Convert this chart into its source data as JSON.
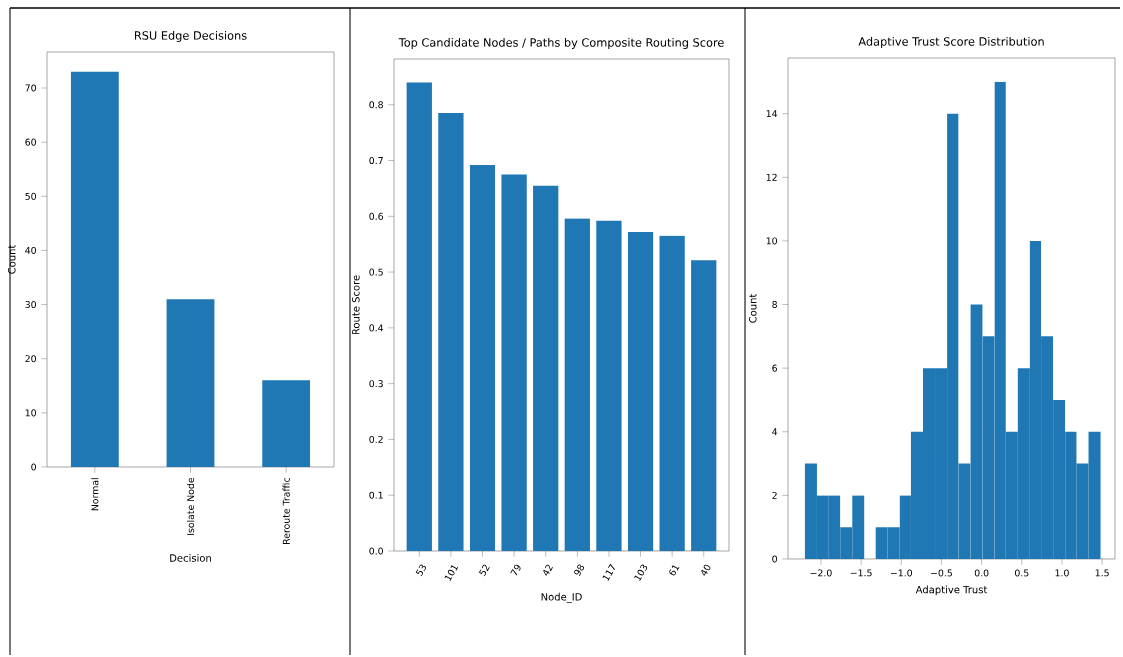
{
  "chart_data": [
    {
      "type": "bar",
      "title": "RSU Edge Decisions",
      "xlabel": "Decision",
      "ylabel": "Count",
      "categories": [
        "Normal",
        "Isolate Node",
        "Reroute Traffic"
      ],
      "values": [
        73,
        31,
        16
      ],
      "color": "#1f77b4",
      "ylim": [
        0,
        76.65
      ],
      "yticks": [
        0,
        10,
        20,
        30,
        40,
        50,
        60,
        70
      ]
    },
    {
      "type": "bar",
      "title": "Top Candidate Nodes / Paths by Composite Routing Score",
      "xlabel": "Node_ID",
      "ylabel": "Route Score",
      "categories": [
        "53",
        "101",
        "52",
        "79",
        "42",
        "98",
        "117",
        "103",
        "61",
        "40"
      ],
      "values": [
        0.84,
        0.785,
        0.692,
        0.675,
        0.655,
        0.596,
        0.592,
        0.572,
        0.565,
        0.521
      ],
      "color": "#1f77b4",
      "ylim": [
        0,
        0.882
      ],
      "yticks": [
        {
          "value": 0,
          "label": "0.0"
        },
        {
          "value": 0.1,
          "label": "0.1"
        },
        {
          "value": 0.2,
          "label": "0.2"
        },
        {
          "value": 0.3,
          "label": "0.3"
        },
        {
          "value": 0.4,
          "label": "0.4"
        },
        {
          "value": 0.5,
          "label": "0.5"
        },
        {
          "value": 0.6,
          "label": "0.6"
        },
        {
          "value": 0.7,
          "label": "0.7"
        },
        {
          "value": 0.8,
          "label": "0.8"
        }
      ]
    },
    {
      "type": "histogram",
      "title": "Adaptive Trust Score Distribution",
      "xlabel": "Adaptive Trust",
      "ylabel": "Count",
      "bins": [
        -2.2,
        -2.05,
        -1.91,
        -1.76,
        -1.61,
        -1.46,
        -1.32,
        -1.17,
        -1.02,
        -0.88,
        -0.73,
        -0.58,
        -0.43,
        -0.29,
        -0.14,
        0.01,
        0.16,
        0.3,
        0.45,
        0.6,
        0.74,
        0.89,
        1.04,
        1.18,
        1.33,
        1.48
      ],
      "values": [
        3,
        2,
        2,
        1,
        2,
        0,
        1,
        1,
        2,
        4,
        6,
        6,
        14,
        3,
        8,
        7,
        15,
        4,
        6,
        10,
        7,
        5,
        4,
        3,
        4
      ],
      "color": "#1f77b4",
      "xlim": [
        -2.41,
        1.66
      ],
      "xticks": [
        {
          "value": -2,
          "label": "−2.0"
        },
        {
          "value": -1.5,
          "label": "−1.5"
        },
        {
          "value": -1,
          "label": "−1.0"
        },
        {
          "value": -0.5,
          "label": "−0.5"
        },
        {
          "value": 0,
          "label": "0.0"
        },
        {
          "value": 0.5,
          "label": "0.5"
        },
        {
          "value": 1,
          "label": "1.0"
        },
        {
          "value": 1.5,
          "label": "1.5"
        }
      ],
      "ylim": [
        0,
        15.75
      ],
      "yticks": [
        0,
        2,
        4,
        6,
        8,
        10,
        12,
        14
      ]
    }
  ]
}
